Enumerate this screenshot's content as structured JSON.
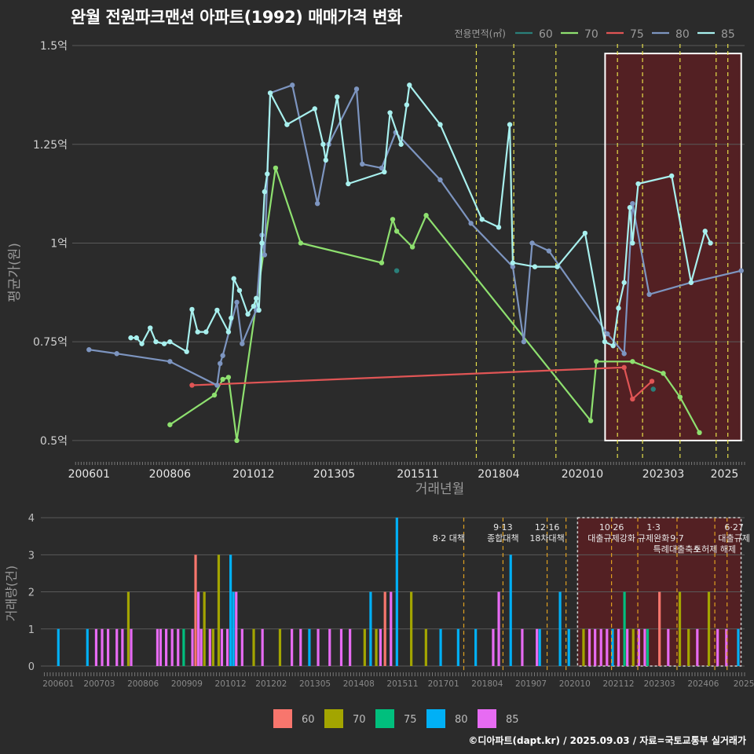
{
  "title": "완월 전원파크맨션 아파트(1992) 매매가격 변화",
  "credit": "©디아파트(dapt.kr) / 2025.09.03 / 자료=국토교통부 실거래가",
  "colors": {
    "series": {
      "60": "#2a7f7a",
      "70": "#8ee06f",
      "75": "#e05555",
      "80": "#7d95c0",
      "85": "#a8f0ee"
    },
    "bars": {
      "60": "#f8766d",
      "70": "#a3a500",
      "75": "#00bf7d",
      "80": "#00b0f6",
      "85": "#e76bf3"
    },
    "highlight_fill": "#5a1f22",
    "policy_line": "#e6e04a",
    "policy_line_bottom": "#e0a020"
  },
  "chart_data": [
    {
      "type": "line",
      "title": "완월 전원파크맨션 아파트(1992) 매매가격 변화",
      "xlabel": "거래년월",
      "ylabel": "평균가(원)",
      "xlim": [
        2005.5,
        2025.6
      ],
      "ylim": [
        0.45,
        1.52
      ],
      "x_ticks": [
        {
          "x": 2006.0,
          "label": "200601"
        },
        {
          "x": 2008.42,
          "label": "200806"
        },
        {
          "x": 2010.92,
          "label": "201012"
        },
        {
          "x": 2013.33,
          "label": "201305"
        },
        {
          "x": 2015.83,
          "label": "201511"
        },
        {
          "x": 2018.25,
          "label": "201804"
        },
        {
          "x": 2020.75,
          "label": "202010"
        },
        {
          "x": 2023.17,
          "label": "202303"
        },
        {
          "x": 2025.0,
          "label": "2025"
        }
      ],
      "y_ticks": [
        {
          "y": 0.5,
          "label": "0.5억"
        },
        {
          "y": 0.75,
          "label": "0.75억"
        },
        {
          "y": 1.0,
          "label": "1억"
        },
        {
          "y": 1.25,
          "label": "1.25억"
        },
        {
          "y": 1.5,
          "label": "1.5억"
        }
      ],
      "legend": {
        "title": "전용면적(㎡)",
        "position": "top-right",
        "entries": [
          "60",
          "70",
          "75",
          "80",
          "85"
        ]
      },
      "highlight_range": {
        "x": [
          2021.43,
          2025.5
        ],
        "y": [
          0.5,
          1.48
        ]
      },
      "policy_lines": [
        2017.58,
        2018.7,
        2019.96,
        2021.8,
        2022.55,
        2023.67,
        2024.75,
        2025.1
      ],
      "series": [
        {
          "name": "60",
          "line": false,
          "points": [
            [
              2015.2,
              0.93
            ],
            [
              2022.87,
              0.63
            ]
          ]
        },
        {
          "name": "70",
          "line": true,
          "points": [
            [
              2008.42,
              0.54
            ],
            [
              2009.75,
              0.615
            ],
            [
              2010.0,
              0.655
            ],
            [
              2010.17,
              0.66
            ],
            [
              2010.42,
              0.5
            ],
            [
              2011.58,
              1.19
            ],
            [
              2012.33,
              1.0
            ],
            [
              2014.75,
              0.95
            ],
            [
              2015.08,
              1.06
            ],
            [
              2015.2,
              1.03
            ],
            [
              2015.67,
              0.99
            ],
            [
              2016.08,
              1.07
            ],
            [
              2021.0,
              0.55
            ],
            [
              2021.17,
              0.7
            ],
            [
              2022.25,
              0.7
            ],
            [
              2023.17,
              0.67
            ],
            [
              2023.67,
              0.61
            ],
            [
              2024.25,
              0.52
            ]
          ]
        },
        {
          "name": "75",
          "line": true,
          "points": [
            [
              2009.08,
              0.64
            ],
            [
              2022.0,
              0.685
            ],
            [
              2022.25,
              0.605
            ],
            [
              2022.83,
              0.65
            ]
          ]
        },
        {
          "name": "80",
          "line": true,
          "points": [
            [
              2006.0,
              0.73
            ],
            [
              2006.83,
              0.72
            ],
            [
              2008.42,
              0.7
            ],
            [
              2009.83,
              0.64
            ],
            [
              2009.92,
              0.695
            ],
            [
              2010.0,
              0.715
            ],
            [
              2010.42,
              0.85
            ],
            [
              2010.58,
              0.745
            ],
            [
              2011.0,
              0.83
            ],
            [
              2011.17,
              1.02
            ],
            [
              2011.25,
              0.97
            ],
            [
              2011.42,
              1.38
            ],
            [
              2012.08,
              1.4
            ],
            [
              2012.83,
              1.1
            ],
            [
              2013.17,
              1.25
            ],
            [
              2014.0,
              1.39
            ],
            [
              2014.17,
              1.2
            ],
            [
              2014.75,
              1.19
            ],
            [
              2015.17,
              1.28
            ],
            [
              2016.5,
              1.16
            ],
            [
              2017.42,
              1.05
            ],
            [
              2018.67,
              0.94
            ],
            [
              2019.0,
              0.75
            ],
            [
              2019.25,
              1.0
            ],
            [
              2019.75,
              0.98
            ],
            [
              2021.5,
              0.77
            ],
            [
              2022.0,
              0.72
            ],
            [
              2022.25,
              1.1
            ],
            [
              2022.75,
              0.87
            ],
            [
              2024.0,
              0.9
            ],
            [
              2025.5,
              0.93
            ]
          ]
        },
        {
          "name": "85",
          "line": true,
          "points": [
            [
              2007.25,
              0.76
            ],
            [
              2007.42,
              0.76
            ],
            [
              2007.58,
              0.745
            ],
            [
              2007.83,
              0.785
            ],
            [
              2008.0,
              0.75
            ],
            [
              2008.25,
              0.745
            ],
            [
              2008.42,
              0.75
            ],
            [
              2008.92,
              0.725
            ],
            [
              2009.08,
              0.832
            ],
            [
              2009.25,
              0.775
            ],
            [
              2009.5,
              0.775
            ],
            [
              2009.83,
              0.83
            ],
            [
              2010.17,
              0.775
            ],
            [
              2010.25,
              0.81
            ],
            [
              2010.33,
              0.91
            ],
            [
              2010.5,
              0.88
            ],
            [
              2010.75,
              0.82
            ],
            [
              2010.92,
              0.84
            ],
            [
              2011.0,
              0.86
            ],
            [
              2011.08,
              0.83
            ],
            [
              2011.17,
              1.0
            ],
            [
              2011.25,
              1.13
            ],
            [
              2011.33,
              1.175
            ],
            [
              2011.42,
              1.38
            ],
            [
              2011.92,
              1.3
            ],
            [
              2012.75,
              1.34
            ],
            [
              2013.0,
              1.25
            ],
            [
              2013.08,
              1.21
            ],
            [
              2013.42,
              1.37
            ],
            [
              2013.75,
              1.15
            ],
            [
              2014.83,
              1.18
            ],
            [
              2015.0,
              1.33
            ],
            [
              2015.33,
              1.25
            ],
            [
              2015.5,
              1.35
            ],
            [
              2015.58,
              1.4
            ],
            [
              2016.5,
              1.3
            ],
            [
              2017.75,
              1.06
            ],
            [
              2018.25,
              1.04
            ],
            [
              2018.58,
              1.3
            ],
            [
              2018.67,
              0.95
            ],
            [
              2019.33,
              0.94
            ],
            [
              2020.0,
              0.94
            ],
            [
              2020.83,
              1.025
            ],
            [
              2021.42,
              0.75
            ],
            [
              2021.67,
              0.74
            ],
            [
              2021.83,
              0.835
            ],
            [
              2022.0,
              0.9
            ],
            [
              2022.17,
              1.09
            ],
            [
              2022.25,
              1.0
            ],
            [
              2022.42,
              1.15
            ],
            [
              2023.42,
              1.17
            ],
            [
              2024.0,
              0.9
            ],
            [
              2024.42,
              1.03
            ],
            [
              2024.58,
              1.0
            ]
          ]
        }
      ]
    },
    {
      "type": "bar",
      "xlabel": "",
      "ylabel": "거래량(건)",
      "xlim": [
        2005.5,
        2025.6
      ],
      "ylim": [
        0,
        4.15
      ],
      "x_ticks": [
        {
          "x": 2006.0,
          "label": "200601"
        },
        {
          "x": 2007.17,
          "label": "200703"
        },
        {
          "x": 2008.42,
          "label": "200806"
        },
        {
          "x": 2009.67,
          "label": "200909"
        },
        {
          "x": 2010.92,
          "label": "201012"
        },
        {
          "x": 2012.08,
          "label": "201202"
        },
        {
          "x": 2013.33,
          "label": "201305"
        },
        {
          "x": 2014.58,
          "label": "201408"
        },
        {
          "x": 2015.83,
          "label": "201511"
        },
        {
          "x": 2017.0,
          "label": "201701"
        },
        {
          "x": 2018.25,
          "label": "201804"
        },
        {
          "x": 2019.5,
          "label": "201907"
        },
        {
          "x": 2020.75,
          "label": "202010"
        },
        {
          "x": 2022.0,
          "label": "202112"
        },
        {
          "x": 2023.17,
          "label": "202303"
        },
        {
          "x": 2024.42,
          "label": "202406"
        },
        {
          "x": 2025.58,
          "label": "2025"
        }
      ],
      "y_ticks": [
        {
          "y": 0,
          "label": "0"
        },
        {
          "y": 1,
          "label": "1"
        },
        {
          "y": 2,
          "label": "2"
        },
        {
          "y": 3,
          "label": "3"
        },
        {
          "y": 4,
          "label": "4"
        }
      ],
      "legend": {
        "position": "bottom",
        "entries": [
          "60",
          "70",
          "75",
          "80",
          "85"
        ]
      },
      "highlight_range": {
        "x": [
          2020.83,
          2025.5
        ]
      },
      "policy_lines": [
        2017.58,
        2018.7,
        2019.96,
        2020.5,
        2021.8,
        2022.55,
        2023.67,
        2024.75,
        2025.1
      ],
      "annotations": [
        {
          "x": 2017.15,
          "row": 1,
          "text": "8·2 대책"
        },
        {
          "x": 2018.7,
          "row": 0,
          "text": "9·13"
        },
        {
          "x": 2018.7,
          "row": 1,
          "text": "종합대책"
        },
        {
          "x": 2019.96,
          "row": 0,
          "text": "12·16"
        },
        {
          "x": 2019.96,
          "row": 1,
          "text": "18차대책"
        },
        {
          "x": 2021.8,
          "row": 0,
          "text": "10·26"
        },
        {
          "x": 2021.8,
          "row": 1,
          "text": "대출규제강화"
        },
        {
          "x": 2023.0,
          "row": 0,
          "text": "1·3"
        },
        {
          "x": 2023.0,
          "row": 1,
          "text": "규제완화"
        },
        {
          "x": 2023.67,
          "row": 1,
          "text": "9·7"
        },
        {
          "x": 2023.67,
          "row": 2,
          "text": "특례대출축소"
        },
        {
          "x": 2024.75,
          "row": 2,
          "text": "토허제 해제"
        },
        {
          "x": 2025.3,
          "row": 0,
          "text": "6·27"
        },
        {
          "x": 2025.3,
          "row": 1,
          "text": "대출규제"
        }
      ],
      "bars": [
        {
          "x": 2006.0,
          "80": 1
        },
        {
          "x": 2006.83,
          "80": 1
        },
        {
          "x": 2007.08,
          "85": 1
        },
        {
          "x": 2007.25,
          "85": 1
        },
        {
          "x": 2007.42,
          "85": 1
        },
        {
          "x": 2007.67,
          "85": 1
        },
        {
          "x": 2007.83,
          "85": 1
        },
        {
          "x": 2008.0,
          "70": 2
        },
        {
          "x": 2008.08,
          "85": 1
        },
        {
          "x": 2008.83,
          "85": 1
        },
        {
          "x": 2008.92,
          "85": 1
        },
        {
          "x": 2009.08,
          "85": 1
        },
        {
          "x": 2009.25,
          "85": 1
        },
        {
          "x": 2009.42,
          "85": 1
        },
        {
          "x": 2009.58,
          "75": 1
        },
        {
          "x": 2009.83,
          "85": 1
        },
        {
          "x": 2009.92,
          "60": 3
        },
        {
          "x": 2010.0,
          "85": 2
        },
        {
          "x": 2010.08,
          "85": 1
        },
        {
          "x": 2010.17,
          "70": 2
        },
        {
          "x": 2010.33,
          "85": 1
        },
        {
          "x": 2010.42,
          "70": 1
        },
        {
          "x": 2010.58,
          "70": 3
        },
        {
          "x": 2010.67,
          "85": 1
        },
        {
          "x": 2010.83,
          "85": 1
        },
        {
          "x": 2010.92,
          "80": 3
        },
        {
          "x": 2011.0,
          "80": 2
        },
        {
          "x": 2011.08,
          "85": 2
        },
        {
          "x": 2011.25,
          "85": 1
        },
        {
          "x": 2011.58,
          "70": 1
        },
        {
          "x": 2011.83,
          "85": 1
        },
        {
          "x": 2012.33,
          "70": 1
        },
        {
          "x": 2012.67,
          "85": 1
        },
        {
          "x": 2012.92,
          "85": 1
        },
        {
          "x": 2013.17,
          "80": 1
        },
        {
          "x": 2013.42,
          "85": 1
        },
        {
          "x": 2013.75,
          "85": 1
        },
        {
          "x": 2014.08,
          "85": 1
        },
        {
          "x": 2014.33,
          "85": 1
        },
        {
          "x": 2014.75,
          "70": 1
        },
        {
          "x": 2014.92,
          "80": 2
        },
        {
          "x": 2015.08,
          "70": 1
        },
        {
          "x": 2015.2,
          "85": 1
        },
        {
          "x": 2015.33,
          "60": 2
        },
        {
          "x": 2015.5,
          "85": 2
        },
        {
          "x": 2015.67,
          "80": 4
        },
        {
          "x": 2016.08,
          "70": 2
        },
        {
          "x": 2016.5,
          "70": 1
        },
        {
          "x": 2016.92,
          "80": 1
        },
        {
          "x": 2017.42,
          "80": 1
        },
        {
          "x": 2017.92,
          "80": 1
        },
        {
          "x": 2018.42,
          "85": 1
        },
        {
          "x": 2018.58,
          "85": 2
        },
        {
          "x": 2018.92,
          "80": 3
        },
        {
          "x": 2019.25,
          "85": 1
        },
        {
          "x": 2019.67,
          "85": 1
        },
        {
          "x": 2019.75,
          "80": 1
        },
        {
          "x": 2020.33,
          "80": 2
        },
        {
          "x": 2020.58,
          "80": 1
        },
        {
          "x": 2021.0,
          "70": 1
        },
        {
          "x": 2021.17,
          "85": 1
        },
        {
          "x": 2021.33,
          "85": 1
        },
        {
          "x": 2021.5,
          "85": 1
        },
        {
          "x": 2021.67,
          "85": 1
        },
        {
          "x": 2021.83,
          "80": 1
        },
        {
          "x": 2022.0,
          "85": 1
        },
        {
          "x": 2022.17,
          "75": 2
        },
        {
          "x": 2022.25,
          "85": 1
        },
        {
          "x": 2022.42,
          "70": 1
        },
        {
          "x": 2022.58,
          "85": 1
        },
        {
          "x": 2022.75,
          "85": 1
        },
        {
          "x": 2022.83,
          "75": 1
        },
        {
          "x": 2023.17,
          "60": 2
        },
        {
          "x": 2023.42,
          "85": 1
        },
        {
          "x": 2023.75,
          "70": 2
        },
        {
          "x": 2024.0,
          "70": 1
        },
        {
          "x": 2024.25,
          "85": 1
        },
        {
          "x": 2024.58,
          "70": 2
        },
        {
          "x": 2024.83,
          "85": 1
        },
        {
          "x": 2025.08,
          "85": 1
        },
        {
          "x": 2025.42,
          "80": 1
        }
      ]
    }
  ]
}
